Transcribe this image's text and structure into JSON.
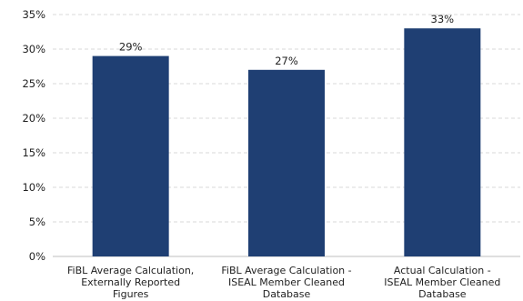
{
  "chart_data": {
    "type": "bar",
    "categories": [
      [
        "FiBL Average Calculation,",
        "Externally Reported",
        "Figures"
      ],
      [
        "FiBL Average Calculation -",
        "ISEAL Member Cleaned",
        "Database"
      ],
      [
        "Actual Calculation -",
        "ISEAL Member Cleaned",
        "Database"
      ]
    ],
    "values": [
      29,
      27,
      33
    ],
    "data_labels": [
      "29%",
      "27%",
      "33%"
    ],
    "ylim": [
      0,
      35
    ],
    "yticks": [
      0,
      5,
      10,
      15,
      20,
      25,
      30,
      35
    ],
    "ytick_labels": [
      "0%",
      "5%",
      "10%",
      "15%",
      "20%",
      "25%",
      "30%",
      "35%"
    ],
    "title": "",
    "xlabel": "",
    "ylabel": "",
    "grid": true,
    "legend": "none",
    "bar_color": "#1f3f73",
    "grid_color": "#d9d9d9"
  }
}
